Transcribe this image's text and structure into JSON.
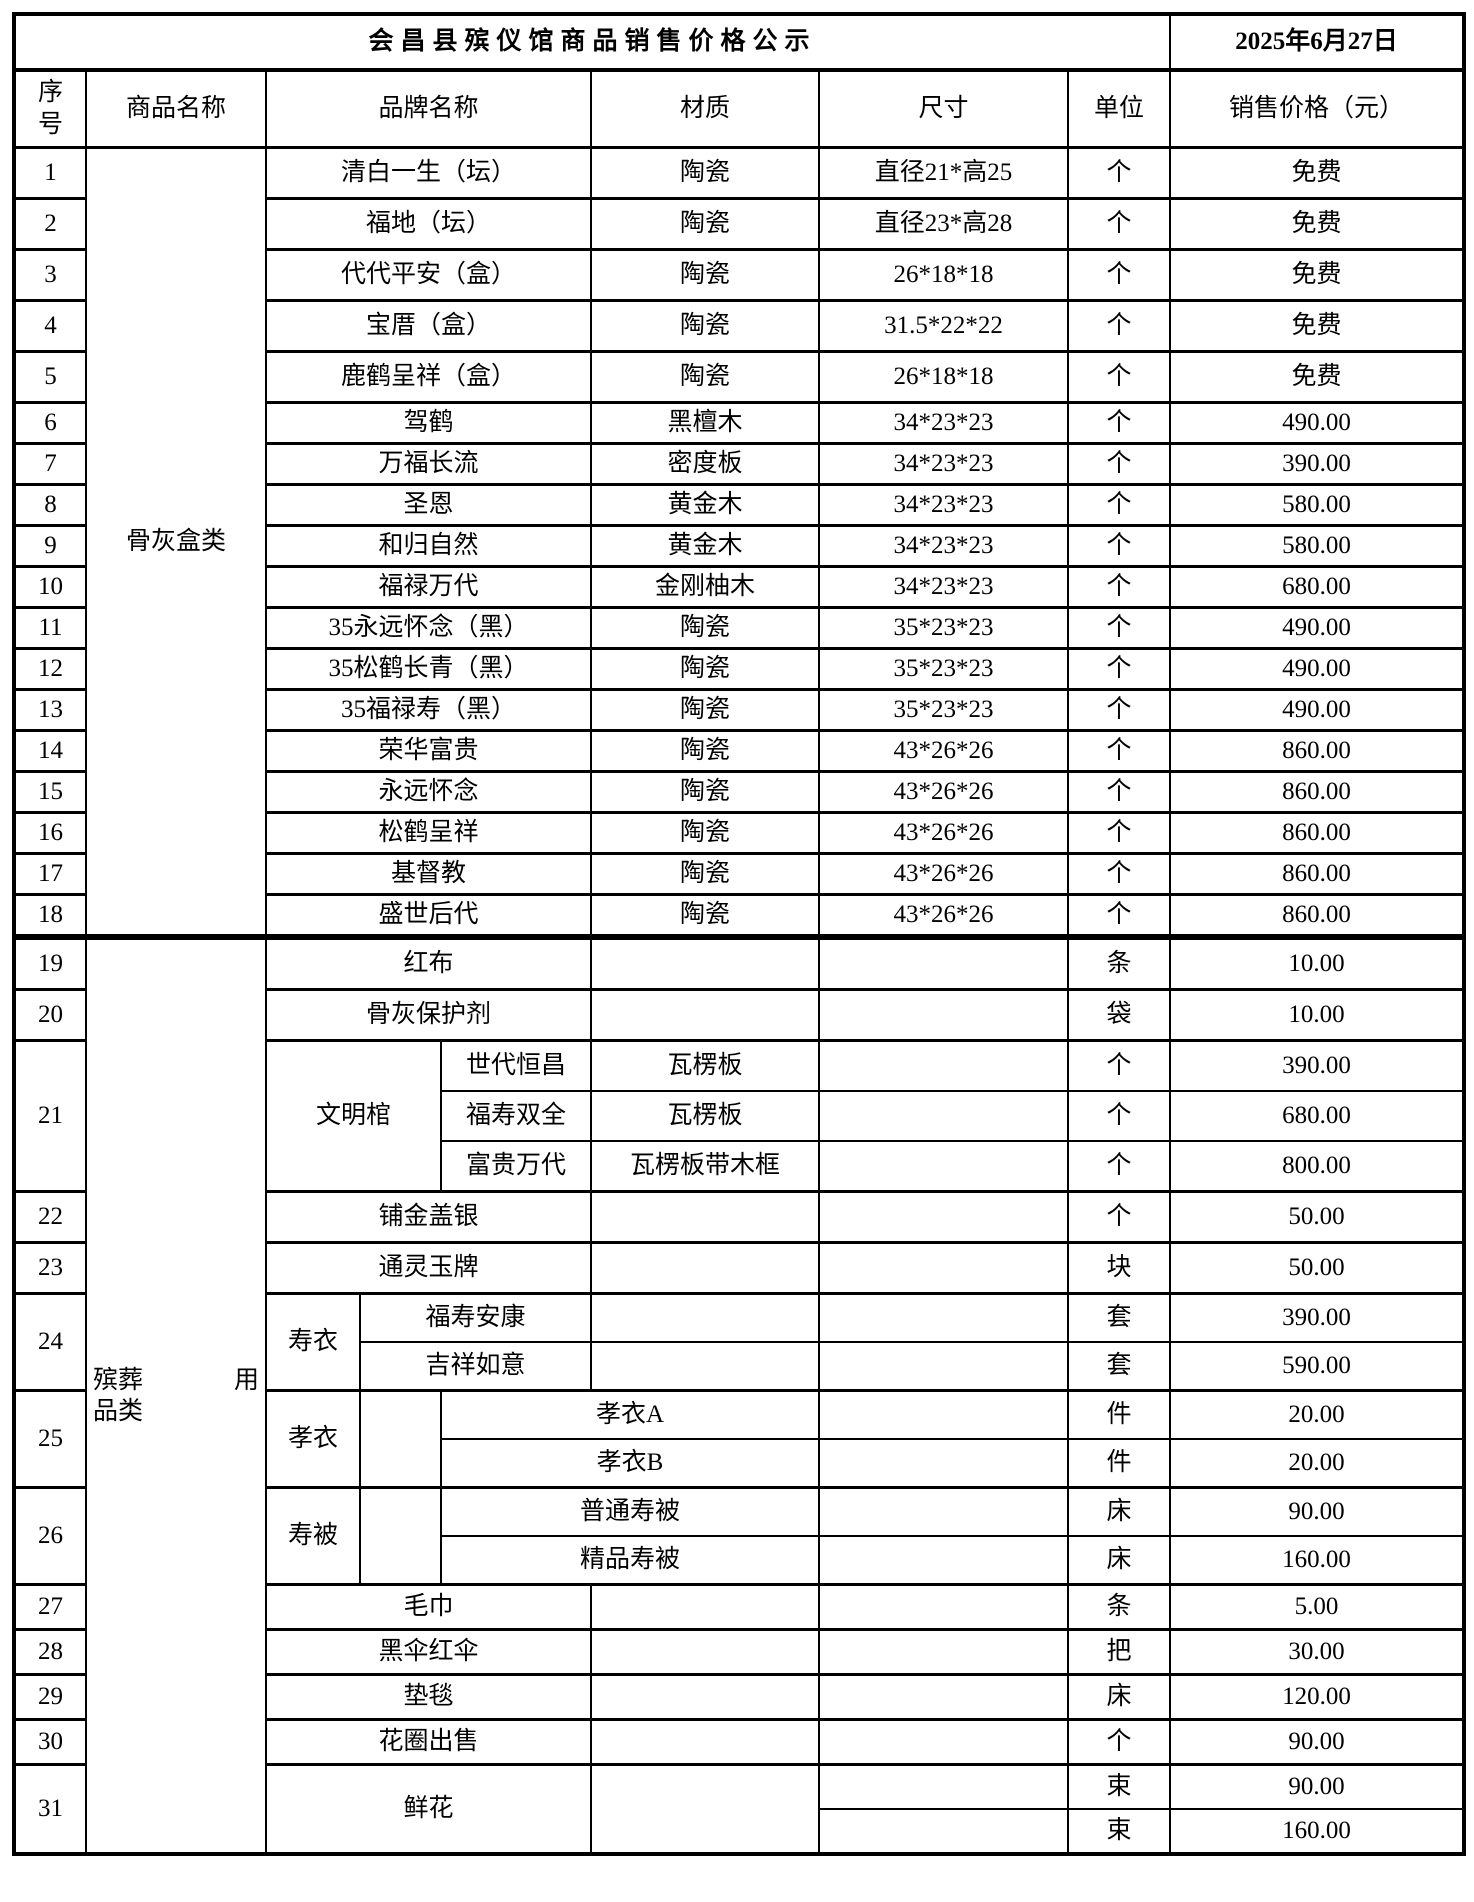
{
  "title": "会昌县殡仪馆商品销售价格公示",
  "date": "2025年6月27日",
  "colors": {
    "border": "#000000",
    "background": "#ffffff",
    "text": "#000000"
  },
  "header": {
    "col_no": "序号",
    "col_product": "商品名称",
    "col_brand": "品牌名称",
    "col_material": "材质",
    "col_size": "尺寸",
    "col_unit": "单位",
    "col_price": "销售价格（元）"
  },
  "categories": [
    {
      "label": "骨灰盒类",
      "from": 1,
      "to": 18
    },
    {
      "label": "殡葬用品类",
      "line1a": "殡葬",
      "line1b": "用",
      "line2": "品类",
      "from": 19,
      "to": 31
    }
  ],
  "items": [
    {
      "no": "1",
      "brand": "清白一生（坛）",
      "material": "陶瓷",
      "size": "直径21*高25",
      "unit": "个",
      "price": "免费"
    },
    {
      "no": "2",
      "brand": "福地（坛）",
      "material": "陶瓷",
      "size": "直径23*高28",
      "unit": "个",
      "price": "免费"
    },
    {
      "no": "3",
      "brand": "代代平安（盒）",
      "material": "陶瓷",
      "size": "26*18*18",
      "unit": "个",
      "price": "免费"
    },
    {
      "no": "4",
      "brand": "宝厝（盒）",
      "material": "陶瓷",
      "size": "31.5*22*22",
      "unit": "个",
      "price": "免费"
    },
    {
      "no": "5",
      "brand": "鹿鹤呈祥（盒）",
      "material": "陶瓷",
      "size": "26*18*18",
      "unit": "个",
      "price": "免费"
    },
    {
      "no": "6",
      "brand": "驾鹤",
      "material": "黑檀木",
      "size": "34*23*23",
      "unit": "个",
      "price": "490.00"
    },
    {
      "no": "7",
      "brand": "万福长流",
      "material": "密度板",
      "size": "34*23*23",
      "unit": "个",
      "price": "390.00"
    },
    {
      "no": "8",
      "brand": "圣恩",
      "material": "黄金木",
      "size": "34*23*23",
      "unit": "个",
      "price": "580.00"
    },
    {
      "no": "9",
      "brand": "和归自然",
      "material": "黄金木",
      "size": "34*23*23",
      "unit": "个",
      "price": "580.00"
    },
    {
      "no": "10",
      "brand": "福禄万代",
      "material": "金刚柚木",
      "size": "34*23*23",
      "unit": "个",
      "price": "680.00"
    },
    {
      "no": "11",
      "brand": "35永远怀念（黑）",
      "material": "陶瓷",
      "size": "35*23*23",
      "unit": "个",
      "price": "490.00"
    },
    {
      "no": "12",
      "brand": "35松鹤长青（黑）",
      "material": "陶瓷",
      "size": "35*23*23",
      "unit": "个",
      "price": "490.00"
    },
    {
      "no": "13",
      "brand": "35福禄寿（黑）",
      "material": "陶瓷",
      "size": "35*23*23",
      "unit": "个",
      "price": "490.00"
    },
    {
      "no": "14",
      "brand": "荣华富贵",
      "material": "陶瓷",
      "size": "43*26*26",
      "unit": "个",
      "price": "860.00"
    },
    {
      "no": "15",
      "brand": "永远怀念",
      "material": "陶瓷",
      "size": "43*26*26",
      "unit": "个",
      "price": "860.00"
    },
    {
      "no": "16",
      "brand": "松鹤呈祥",
      "material": "陶瓷",
      "size": "43*26*26",
      "unit": "个",
      "price": "860.00"
    },
    {
      "no": "17",
      "brand": "基督教",
      "material": "陶瓷",
      "size": "43*26*26",
      "unit": "个",
      "price": "860.00"
    },
    {
      "no": "18",
      "brand": "盛世后代",
      "material": "陶瓷",
      "size": "43*26*26",
      "unit": "个",
      "price": "860.00"
    },
    {
      "no": "19",
      "brand": "红布",
      "material": "",
      "size": "",
      "unit": "条",
      "price": "10.00"
    },
    {
      "no": "20",
      "brand": "骨灰保护剂",
      "material": "",
      "size": "",
      "unit": "袋",
      "price": "10.00"
    },
    {
      "no": "21",
      "group_label": "文明棺",
      "label_width": "wide",
      "material_merged": false,
      "subs": [
        {
          "brand": "世代恒昌",
          "material": "瓦楞板",
          "size": "",
          "unit": "个",
          "price": "390.00"
        },
        {
          "brand": "福寿双全",
          "material": "瓦楞板",
          "size": "",
          "unit": "个",
          "price": "680.00"
        },
        {
          "brand": "富贵万代",
          "material": "瓦楞板带木框",
          "size": "",
          "unit": "个",
          "price": "800.00"
        }
      ]
    },
    {
      "no": "22",
      "brand": "铺金盖银",
      "material": "",
      "size": "",
      "unit": "个",
      "price": "50.00"
    },
    {
      "no": "23",
      "brand": "通灵玉牌",
      "material": "",
      "size": "",
      "unit": "块",
      "price": "50.00"
    },
    {
      "no": "24",
      "group_label": "寿衣",
      "label_width": "narrow",
      "material_merged": false,
      "subs": [
        {
          "brand": "福寿安康",
          "material": "",
          "size": "",
          "unit": "套",
          "price": "390.00"
        },
        {
          "brand": "吉祥如意",
          "material": "",
          "size": "",
          "unit": "套",
          "price": "590.00"
        }
      ]
    },
    {
      "no": "25",
      "group_label": "孝衣",
      "label_width": "narrow",
      "material_merged": true,
      "subs": [
        {
          "brand": "孝衣A",
          "size": "",
          "unit": "件",
          "price": "20.00"
        },
        {
          "brand": "孝衣B",
          "size": "",
          "unit": "件",
          "price": "20.00"
        }
      ]
    },
    {
      "no": "26",
      "group_label": "寿被",
      "label_width": "narrow",
      "material_merged": true,
      "subs": [
        {
          "brand": "普通寿被",
          "size": "",
          "unit": "床",
          "price": "90.00"
        },
        {
          "brand": "精品寿被",
          "size": "",
          "unit": "床",
          "price": "160.00"
        }
      ]
    },
    {
      "no": "27",
      "brand": "毛巾",
      "material": "",
      "size": "",
      "unit": "条",
      "price": "5.00"
    },
    {
      "no": "28",
      "brand": "黑伞红伞",
      "material": "",
      "size": "",
      "unit": "把",
      "price": "30.00"
    },
    {
      "no": "29",
      "brand": "垫毯",
      "material": "",
      "size": "",
      "unit": "床",
      "price": "120.00"
    },
    {
      "no": "30",
      "brand": "花圈出售",
      "material": "",
      "size": "",
      "unit": "个",
      "price": "90.00"
    },
    {
      "no": "31",
      "brand": "鲜花",
      "brand_merged": true,
      "material_merged": true,
      "subs": [
        {
          "size": "",
          "unit": "束",
          "price": "90.00"
        },
        {
          "size": "",
          "unit": "束",
          "price": "160.00"
        }
      ]
    }
  ]
}
